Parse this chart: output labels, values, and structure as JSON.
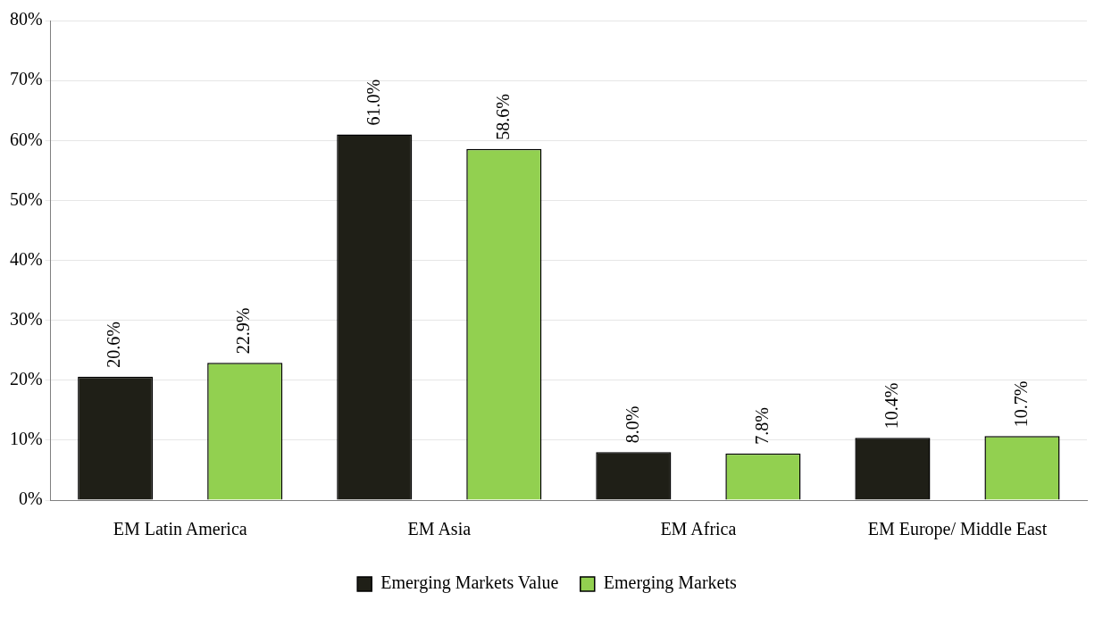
{
  "chart_data": {
    "type": "bar",
    "categories": [
      "EM Latin America",
      "EM Asia",
      "EM Africa",
      "EM Europe/ Middle East"
    ],
    "series": [
      {
        "name": "Emerging Markets Value",
        "color": "#1f1f17",
        "values": [
          20.6,
          61.0,
          8.0,
          10.4
        ],
        "value_labels": [
          "20.6%",
          "61.0%",
          "8.0%",
          "10.4%"
        ]
      },
      {
        "name": "Emerging Markets",
        "color": "#92d050",
        "values": [
          22.9,
          58.6,
          7.8,
          10.7
        ],
        "value_labels": [
          "22.9%",
          "58.6%",
          "7.8%",
          "10.7%"
        ]
      }
    ],
    "ylim": [
      0,
      80
    ],
    "yticks": [
      {
        "value": 0,
        "label": "0%"
      },
      {
        "value": 10,
        "label": "10%"
      },
      {
        "value": 20,
        "label": "20%"
      },
      {
        "value": 30,
        "label": "30%"
      },
      {
        "value": 40,
        "label": "40%"
      },
      {
        "value": 50,
        "label": "50%"
      },
      {
        "value": 60,
        "label": "60%"
      },
      {
        "value": 70,
        "label": "70%"
      },
      {
        "value": 80,
        "label": "80%"
      }
    ],
    "grid": "y",
    "legend": "bottom"
  }
}
